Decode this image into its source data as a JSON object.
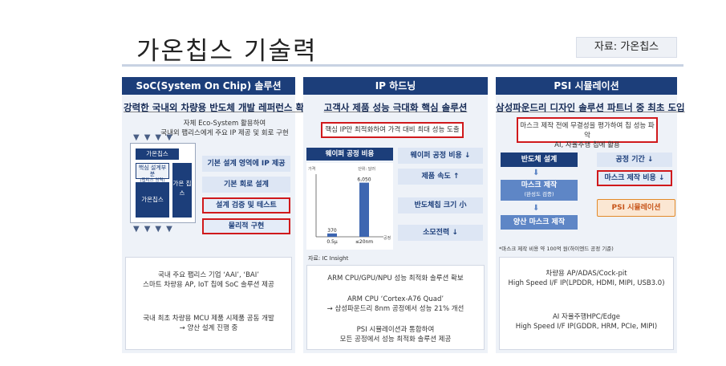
{
  "page": {
    "title": "가온칩스 기술력",
    "source": "자료: 가온칩스"
  },
  "col1": {
    "header": "SoC(System On Chip) 솔루션",
    "subtitle": "강력한 국내외 차량용 반도체 개발 레퍼런스 확보",
    "intro": [
      "자체 Eco-System 활용하여",
      "국내외 팹리스에게 주요 IP 제공 및 회로 구현"
    ],
    "chip_labels": {
      "top": "가온칩스",
      "core": "핵심 설계부분",
      "core_sub": "(팹리스 영역)",
      "left": "가온칩스",
      "right": "가온 칩스"
    },
    "pills": [
      "기본 설계 영역에 IP 제공",
      "기본 회로 설계",
      "설계 검증 및 테스트",
      "물리적 구현"
    ],
    "bottom": [
      [
        "국내 주요 팹리스 기업 ‘AAI’, ‘BAI’",
        "스마트 차량용 AP, IoT 칩에 SoC 솔루션 제공"
      ],
      [
        "국내 최초 차량용 MCU 제품 시제품 공동 개발",
        "→ 양산 설계 진행 중"
      ]
    ]
  },
  "col2": {
    "header": "IP 하드닝",
    "subtitle": "고객사 제품 성능 극대화 핵심 솔루션",
    "highlight": "핵심 IP만 최적화하여 가격 대비 최대 성능 도출",
    "chart_title": "웨이퍼 공정 비용",
    "chart_source": "자료: IC Insight",
    "pills": [
      "웨이퍼 공정 비용 ↓",
      "제품 속도 ↑",
      "반도체칩 크기 小",
      "소모전력 ↓"
    ],
    "bottom": [
      [
        "ARM CPU/GPU/NPU 성능 최적화 솔루션 확보"
      ],
      [
        "ARM CPU ‘Cortex-A76 Quad’",
        "→ 삼성파운드리 8nm 공정에서 성능 21% 개선"
      ],
      [
        "PSI 시뮬레이션과 통합하여",
        "모든 공정에서 성능 최적화 솔루션 제공"
      ]
    ]
  },
  "chart_data": {
    "type": "bar",
    "title": "웨이퍼 공정 비용",
    "ylabel": "가격",
    "unit": "단위: 달러",
    "xlabel": "공정",
    "categories": [
      "0.5μ",
      "≤20nm"
    ],
    "values": [
      370,
      6050
    ],
    "ylim": [
      0,
      7000
    ],
    "bar_color": "#3d66b1"
  },
  "col3": {
    "header": "PSI 시뮬레이션",
    "subtitle": "삼성파운드리 디자인 솔루션 파트너 중 최초 도입",
    "highlight": [
      "마스크 제작 전에 무결성을 평가하여 칩 성능 파악",
      "AI, 자율주행 칩에 활용"
    ],
    "flow": {
      "step1": "반도체 설계",
      "step2": "마스크 제작",
      "step2_sub": "(완성도 검증)",
      "step3": "양산 마스크 제작",
      "psi": "PSI 시뮬레이션"
    },
    "pills": [
      "공정 기간 ↓",
      "마스크 제작 비용 ↓"
    ],
    "footnote": "*마스크 제작 비용 약 100억 원(하이엔드 공정 기준)",
    "bottom": [
      [
        "차량용 AP/ADAS/Cock-pit",
        "High Speed I/F IP(LPDDR, HDMI, MIPI, USB3.0)"
      ],
      [
        "AI 자율주행HPC/Edge",
        "High Speed I/F IP(GDDR, HRM, PCIe, MIPI)"
      ]
    ]
  },
  "colors": {
    "navy": "#1c3e7a",
    "highlight_red": "#d0191c",
    "pill_light": "#dde6f4",
    "panel_bg": "#eef2f8"
  }
}
